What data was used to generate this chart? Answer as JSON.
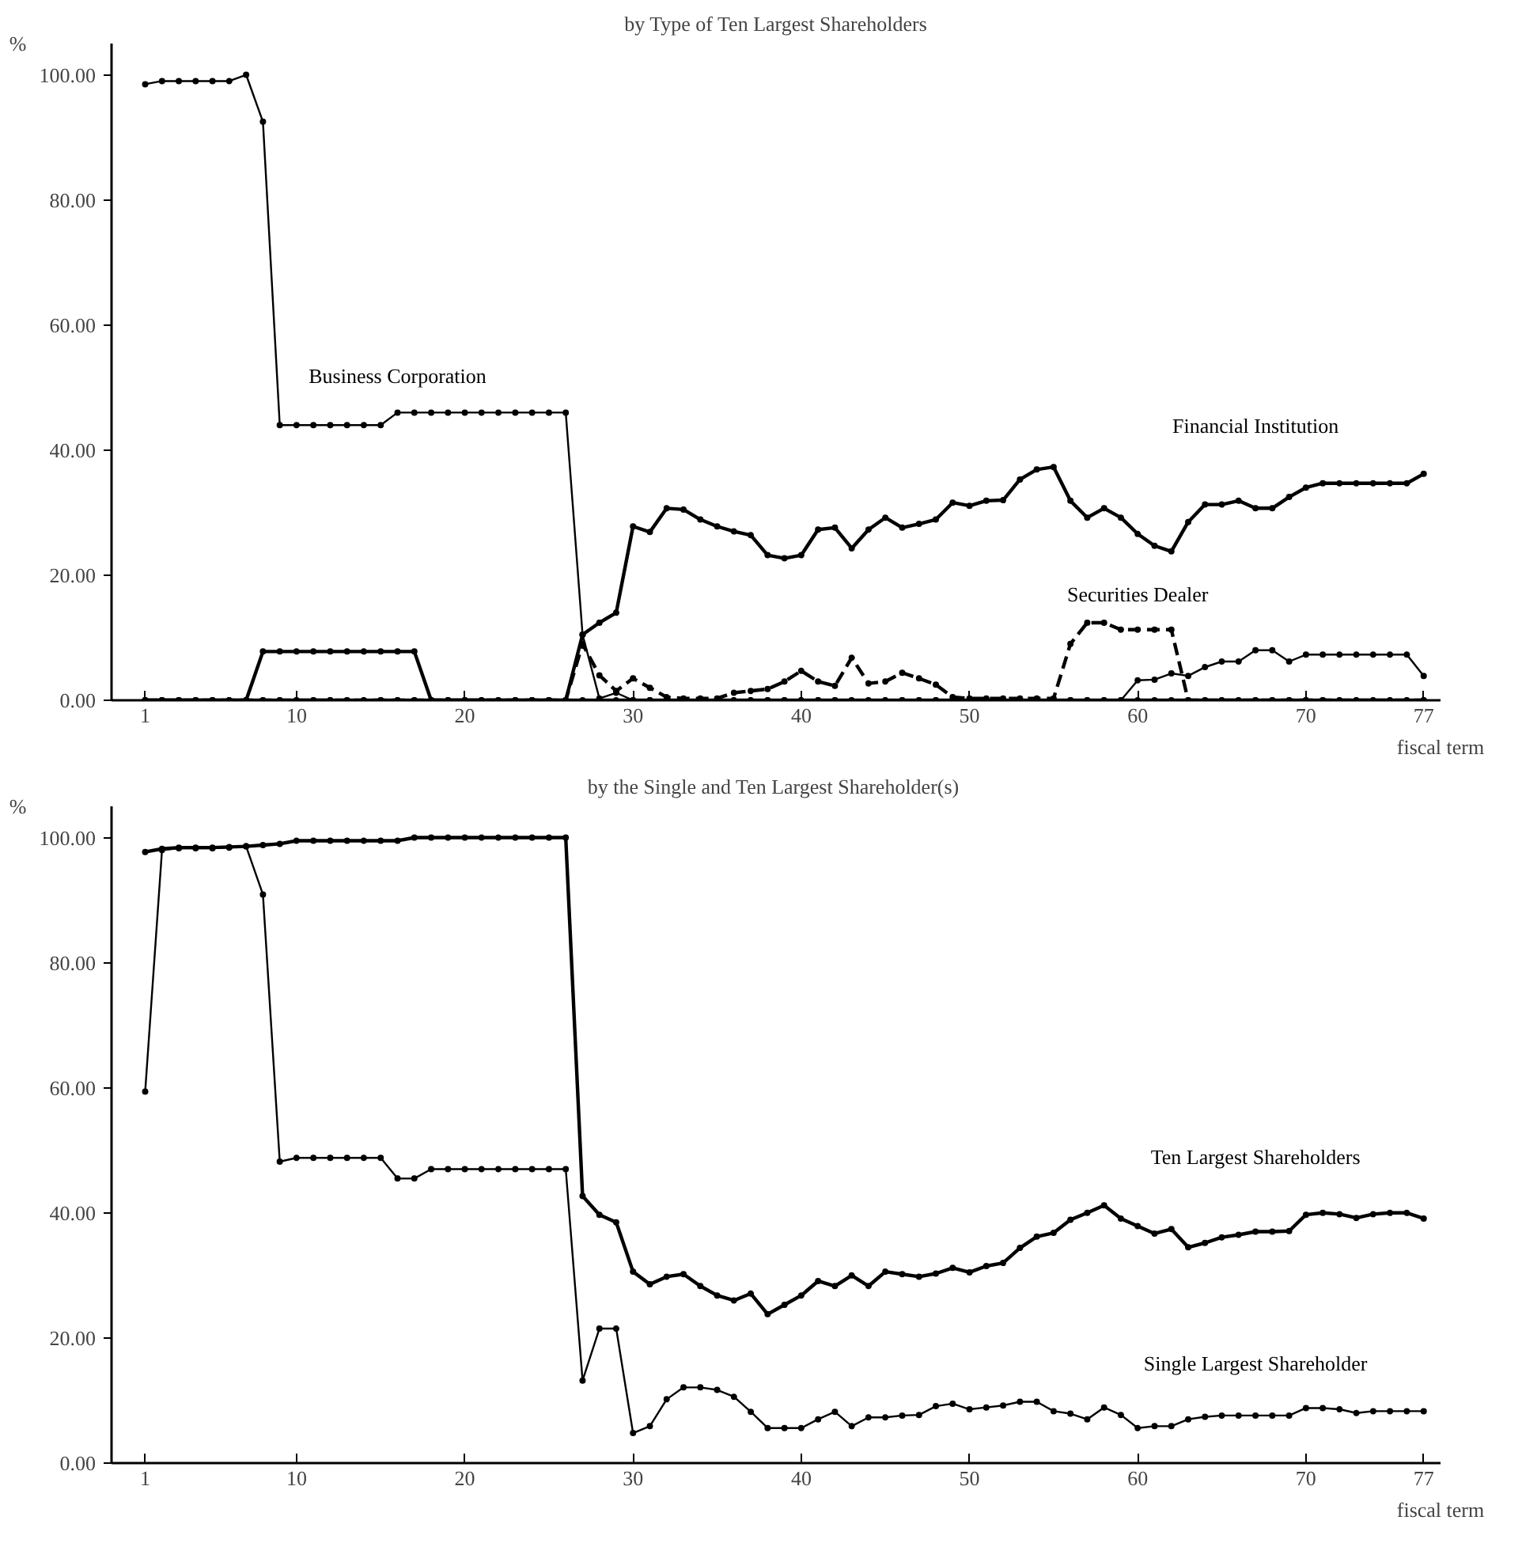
{
  "chart_data": [
    {
      "type": "line",
      "title": "by Type of Ten Largest Shareholders",
      "ylabel": "%",
      "xlabel": "fiscal term",
      "x": [
        1,
        2,
        3,
        4,
        5,
        6,
        7,
        8,
        9,
        10,
        11,
        12,
        13,
        14,
        15,
        16,
        17,
        18,
        19,
        20,
        21,
        22,
        23,
        24,
        25,
        26,
        27,
        28,
        29,
        30,
        31,
        32,
        33,
        34,
        35,
        36,
        37,
        38,
        39,
        40,
        41,
        42,
        43,
        44,
        45,
        46,
        47,
        48,
        49,
        50,
        51,
        52,
        53,
        54,
        55,
        56,
        57,
        58,
        59,
        60,
        61,
        62,
        63,
        64,
        65,
        66,
        67,
        68,
        69,
        70,
        71,
        72,
        73,
        74,
        75,
        76,
        77
      ],
      "xlim": [
        -1,
        78
      ],
      "ylim": [
        0,
        105
      ],
      "xticks": [
        1,
        10,
        20,
        30,
        40,
        50,
        60,
        70,
        77
      ],
      "yticks": [
        {
          "value": 0,
          "label": "0.00"
        },
        {
          "value": 20,
          "label": "20.00"
        },
        {
          "value": 40,
          "label": "40.00"
        },
        {
          "value": 60,
          "label": "60.00"
        },
        {
          "value": 80,
          "label": "80.00"
        },
        {
          "value": 100,
          "label": "100.00"
        }
      ],
      "grid": false,
      "legend": false,
      "marker": "circle",
      "series": [
        {
          "name": "Business Corporation",
          "color": "#000000",
          "line_style": "solid",
          "values": [
            98.5,
            99,
            99,
            99,
            99,
            99,
            100,
            92.5,
            44,
            44,
            44,
            44,
            44,
            44,
            44,
            46,
            46,
            46,
            46,
            46,
            46,
            46,
            46,
            46,
            46,
            46,
            10.5,
            0.3,
            1.2,
            0,
            0,
            0,
            0,
            0,
            0,
            0,
            0,
            0,
            0,
            0,
            0,
            0,
            0,
            0,
            0,
            0,
            0,
            0,
            0,
            0,
            0,
            0,
            0,
            0,
            0,
            0,
            0,
            0,
            0,
            3.2,
            3.3,
            4.3,
            3.9,
            5.3,
            6.2,
            6.2,
            8,
            8,
            6.2,
            7.3,
            7.3,
            7.3,
            7.3,
            7.3,
            7.3,
            7.3,
            3.9
          ]
        },
        {
          "name": "Financial Institution",
          "color": "#000000",
          "line_style": "solid",
          "values": [
            0,
            0,
            0,
            0,
            0,
            0,
            0,
            0,
            0,
            0,
            0,
            0,
            0,
            0,
            0,
            0,
            0,
            0,
            0,
            0,
            0,
            0,
            0,
            0,
            0,
            0,
            10.5,
            12.4,
            14,
            27.8,
            26.9,
            30.7,
            30.5,
            28.9,
            27.8,
            27,
            26.4,
            23.2,
            22.7,
            23.2,
            27.3,
            27.6,
            24.3,
            27.3,
            29.2,
            27.6,
            28.2,
            28.9,
            31.6,
            31.1,
            31.9,
            32,
            35.3,
            36.9,
            37.3,
            31.9,
            29.2,
            30.7,
            29.2,
            26.6,
            24.7,
            23.8,
            28.5,
            31.3,
            31.3,
            31.9,
            30.7,
            30.7,
            32.5,
            34,
            34.7,
            34.7,
            34.7,
            34.7,
            34.7,
            34.7,
            36.2
          ]
        },
        {
          "name": "Securities Dealer",
          "color": "#000000",
          "line_style": "dashed",
          "values": [
            0,
            0,
            0,
            0,
            0,
            0,
            0,
            0,
            0,
            0,
            0,
            0,
            0,
            0,
            0,
            0,
            0,
            0,
            0,
            0,
            0,
            0,
            0,
            0,
            0,
            0,
            9,
            4,
            1.5,
            3.5,
            2,
            0.5,
            0.3,
            0.3,
            0.3,
            1.2,
            1.5,
            1.8,
            3,
            4.7,
            3,
            2.3,
            6.8,
            2.7,
            3,
            4.4,
            3.5,
            2.5,
            0.5,
            0.3,
            0.3,
            0.3,
            0.3,
            0.3,
            0.3,
            9,
            12.4,
            12.4,
            11.3,
            11.3,
            11.3,
            11.3,
            0,
            0,
            0,
            0,
            0,
            0,
            0,
            0,
            0,
            0,
            0,
            0,
            0,
            0,
            0
          ]
        },
        {
          "color": "#000000",
          "line_style": "solid",
          "values": [
            0,
            0,
            0,
            0,
            0,
            0,
            0,
            7.8,
            7.8,
            7.8,
            7.8,
            7.8,
            7.8,
            7.8,
            7.8,
            7.8,
            7.8,
            0,
            0,
            0,
            0,
            0,
            0,
            0,
            0,
            0,
            0,
            0,
            0,
            0,
            0,
            0,
            0,
            0,
            0,
            0,
            0,
            0,
            0,
            0,
            0,
            0,
            0,
            0,
            0,
            0,
            0,
            0,
            0,
            0,
            0,
            0,
            0,
            0,
            0,
            0,
            0,
            0,
            0,
            0,
            0,
            0,
            0,
            0,
            0,
            0,
            0,
            0,
            0,
            0,
            0,
            0,
            0,
            0,
            0,
            0,
            0
          ]
        }
      ]
    },
    {
      "type": "line",
      "title": "by the Single and Ten Largest  Shareholder(s)",
      "ylabel": "%",
      "xlabel": "fiscal term",
      "x": [
        1,
        2,
        3,
        4,
        5,
        6,
        7,
        8,
        9,
        10,
        11,
        12,
        13,
        14,
        15,
        16,
        17,
        18,
        19,
        20,
        21,
        22,
        23,
        24,
        25,
        26,
        27,
        28,
        29,
        30,
        31,
        32,
        33,
        34,
        35,
        36,
        37,
        38,
        39,
        40,
        41,
        42,
        43,
        44,
        45,
        46,
        47,
        48,
        49,
        50,
        51,
        52,
        53,
        54,
        55,
        56,
        57,
        58,
        59,
        60,
        61,
        62,
        63,
        64,
        65,
        66,
        67,
        68,
        69,
        70,
        71,
        72,
        73,
        74,
        75,
        76,
        77
      ],
      "xlim": [
        -1,
        78
      ],
      "ylim": [
        0,
        105
      ],
      "xticks": [
        1,
        10,
        20,
        30,
        40,
        50,
        60,
        70,
        77
      ],
      "yticks": [
        {
          "value": 0,
          "label": "0.00"
        },
        {
          "value": 20,
          "label": "20.00"
        },
        {
          "value": 40,
          "label": "40.00"
        },
        {
          "value": 60,
          "label": "60.00"
        },
        {
          "value": 80,
          "label": "80.00"
        },
        {
          "value": 100,
          "label": "100.00"
        }
      ],
      "grid": false,
      "legend": false,
      "marker": "circle",
      "series": [
        {
          "name": "Ten Largest Shareholders",
          "color": "#000000",
          "line_style": "solid",
          "values": [
            97.7,
            98.2,
            98.4,
            98.4,
            98.4,
            98.5,
            98.6,
            98.8,
            99,
            99.5,
            99.5,
            99.5,
            99.5,
            99.5,
            99.5,
            99.5,
            100,
            100,
            100,
            100,
            100,
            100,
            100,
            100,
            100,
            100,
            42.7,
            39.7,
            38.5,
            30.6,
            28.6,
            29.8,
            30.2,
            28.3,
            26.8,
            26,
            27.1,
            23.8,
            25.3,
            26.8,
            29.1,
            28.3,
            30,
            28.3,
            30.6,
            30.2,
            29.8,
            30.3,
            31.2,
            30.5,
            31.5,
            32,
            34.4,
            36.2,
            36.8,
            38.9,
            40,
            41.2,
            39.1,
            37.9,
            36.7,
            37.4,
            34.5,
            35.2,
            36.1,
            36.5,
            37,
            37,
            37.1,
            39.7,
            40,
            39.8,
            39.2,
            39.8,
            40,
            40,
            39.1
          ]
        },
        {
          "name": "Single Largest Shareholder",
          "color": "#000000",
          "line_style": "solid",
          "values": [
            59.4,
            98,
            98.3,
            98.3,
            98.3,
            98.4,
            98.6,
            90.9,
            48.2,
            48.8,
            48.8,
            48.8,
            48.8,
            48.8,
            48.8,
            45.5,
            45.5,
            47,
            47,
            47,
            47,
            47,
            47,
            47,
            47,
            47,
            13.2,
            21.5,
            21.5,
            4.8,
            5.9,
            10.2,
            12.1,
            12.1,
            11.7,
            10.6,
            8.2,
            5.6,
            5.6,
            5.6,
            7,
            8.2,
            5.9,
            7.3,
            7.3,
            7.6,
            7.7,
            9.1,
            9.5,
            8.6,
            8.9,
            9.2,
            9.8,
            9.8,
            8.3,
            7.9,
            7,
            8.9,
            7.7,
            5.6,
            5.9,
            5.9,
            7,
            7.4,
            7.6,
            7.6,
            7.6,
            7.6,
            7.6,
            8.8,
            8.8,
            8.6,
            8,
            8.3,
            8.3,
            8.3,
            8.3
          ]
        }
      ]
    }
  ]
}
